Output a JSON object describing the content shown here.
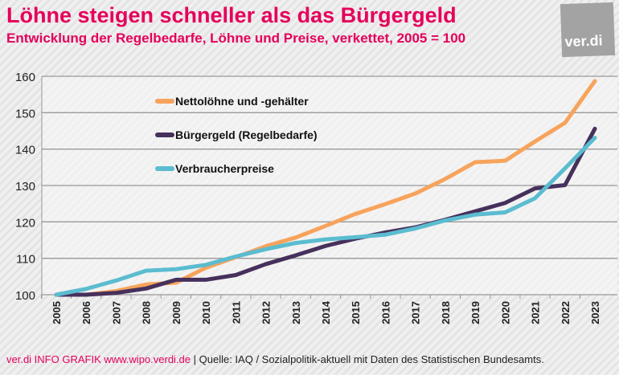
{
  "title": "Löhne steigen schneller als das Bürgergeld",
  "subtitle": "Entwicklung der Regelbedarfe, Löhne und Preise, verkettet, 2005 = 100",
  "logo": "ver.di",
  "footer": {
    "source_brand": "ver.di INFO GRAFIK www.wipo.verdi.de",
    "source": "| Quelle: IAQ / Sozialpolitik-aktuell mit Daten des Statistischen Bundesamts."
  },
  "chart_data": {
    "type": "line",
    "title": "Löhne steigen schneller als das Bürgergeld",
    "x": [
      "2005",
      "2006",
      "2007",
      "2008",
      "2009",
      "2010",
      "2011",
      "2012",
      "2013",
      "2014",
      "2015",
      "2016",
      "2017",
      "2018",
      "2019",
      "2020",
      "2021",
      "2022",
      "2023"
    ],
    "ylim": [
      100,
      160
    ],
    "yticks": [
      100,
      110,
      120,
      130,
      140,
      150,
      160
    ],
    "grid": true,
    "legend_placement": "top-left",
    "series": [
      {
        "name": "Nettolöhne und -gehälter",
        "color": "#f7a35c",
        "values": [
          100,
          100,
          101,
          102.8,
          103.3,
          107.4,
          110.3,
          113.3,
          115.7,
          118.9,
          122.2,
          124.9,
          127.8,
          131.8,
          136.4,
          136.8,
          142.1,
          147.2,
          158.7
        ]
      },
      {
        "name": "Bürgergeld (Regelbedarfe)",
        "color": "#46305c",
        "values": [
          100,
          100,
          100.5,
          101.7,
          104.1,
          104.1,
          105.4,
          108.4,
          110.8,
          113.4,
          115.4,
          117.1,
          118.5,
          120.6,
          122.9,
          125.2,
          129.2,
          130.1,
          145.6
        ]
      },
      {
        "name": "Verbraucherpreise",
        "color": "#5bbcd0",
        "values": [
          100,
          101.6,
          103.9,
          106.6,
          107,
          108.2,
          110.5,
          112.5,
          114.2,
          115.2,
          115.8,
          116.5,
          118.2,
          120.4,
          122.0,
          122.6,
          126.5,
          134.7,
          143.1
        ]
      }
    ]
  }
}
